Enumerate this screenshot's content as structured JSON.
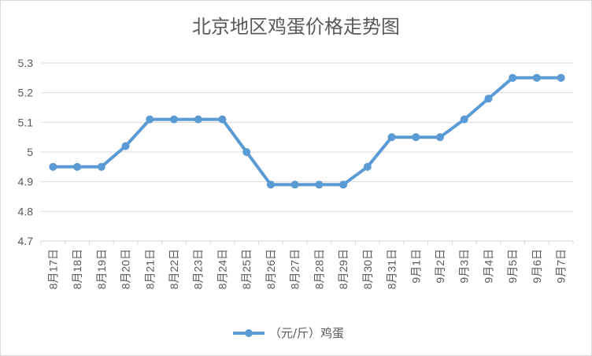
{
  "chart_data": {
    "type": "line",
    "title": "北京地区鸡蛋价格走势图",
    "categories": [
      "8月17日",
      "8月18日",
      "8月19日",
      "8月20日",
      "8月21日",
      "8月22日",
      "8月23日",
      "8月24日",
      "8月25日",
      "8月26日",
      "8月27日",
      "8月28日",
      "8月29日",
      "8月30日",
      "8月31日",
      "9月1日",
      "9月2日",
      "9月3日",
      "9月4日",
      "9月5日",
      "9月6日",
      "9月7日"
    ],
    "series": [
      {
        "name": "（元/斤）鸡蛋",
        "values": [
          4.95,
          4.95,
          4.95,
          5.02,
          5.11,
          5.11,
          5.11,
          5.11,
          5.0,
          4.89,
          4.89,
          4.89,
          4.89,
          4.95,
          5.05,
          5.05,
          5.05,
          5.11,
          5.18,
          5.25,
          5.25,
          5.25
        ]
      }
    ],
    "ylim": [
      4.7,
      5.3
    ],
    "yticks": [
      "4.7",
      "4.8",
      "4.9",
      "5",
      "5.1",
      "5.2",
      "5.3"
    ],
    "grid": true,
    "legend_position": "bottom",
    "line_color": "#5b9bd5"
  }
}
